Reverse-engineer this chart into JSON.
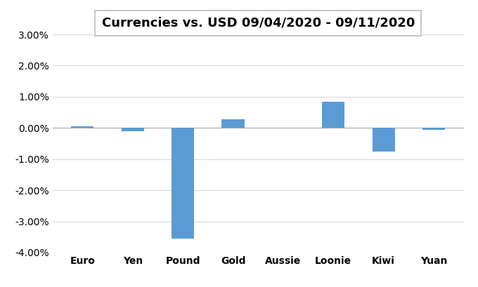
{
  "categories": [
    "Euro",
    "Yen",
    "Pound",
    "Gold",
    "Aussie",
    "Loonie",
    "Kiwi",
    "Yuan"
  ],
  "values": [
    0.0005,
    -0.001,
    -0.0355,
    0.0028,
    5e-05,
    0.0085,
    -0.0075,
    -0.0005
  ],
  "bar_color": "#5b9bd5",
  "title": "Currencies vs. USD 09/04/2020 - 09/11/2020",
  "ylim": [
    -0.04,
    0.03
  ],
  "yticks": [
    -0.04,
    -0.03,
    -0.02,
    -0.01,
    0.0,
    0.01,
    0.02,
    0.03
  ],
  "background_color": "#ffffff",
  "plot_background": "#ffffff",
  "title_fontsize": 13,
  "grid_color": "#d9d9d9",
  "tick_label_fontsize": 10,
  "bar_width": 0.45
}
